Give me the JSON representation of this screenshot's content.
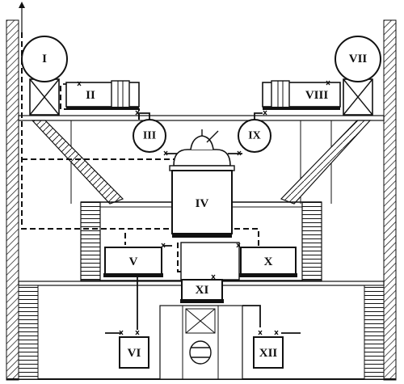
{
  "components": [
    {
      "id": "I",
      "label": "I"
    },
    {
      "id": "II",
      "label": "II"
    },
    {
      "id": "III",
      "label": "III"
    },
    {
      "id": "IV",
      "label": "IV"
    },
    {
      "id": "V",
      "label": "V"
    },
    {
      "id": "VI",
      "label": "VI"
    },
    {
      "id": "VII",
      "label": "VII"
    },
    {
      "id": "VIII",
      "label": "VIII"
    },
    {
      "id": "IX",
      "label": "IX"
    },
    {
      "id": "X",
      "label": "X"
    },
    {
      "id": "XI",
      "label": "XI"
    },
    {
      "id": "XII",
      "label": "XII"
    }
  ]
}
